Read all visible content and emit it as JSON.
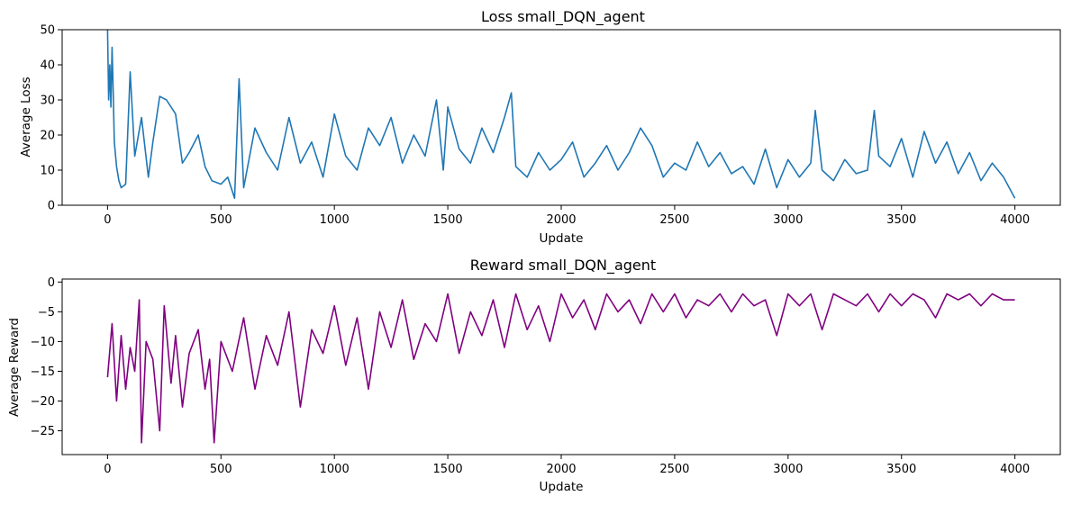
{
  "chart_data": [
    {
      "type": "line",
      "title": "Loss small_DQN_agent",
      "xlabel": "Update",
      "ylabel": "Average Loss",
      "xlim": [
        -200,
        4200
      ],
      "ylim": [
        0,
        50
      ],
      "xticks": [
        0,
        500,
        1000,
        1500,
        2000,
        2500,
        3000,
        3500,
        4000
      ],
      "yticks": [
        0,
        10,
        20,
        30,
        40,
        50
      ],
      "grid": false,
      "legend": "none",
      "series": [
        {
          "color": "#1f77b4",
          "x": [
            0,
            5,
            10,
            15,
            20,
            25,
            30,
            40,
            50,
            60,
            80,
            100,
            120,
            150,
            180,
            200,
            230,
            260,
            300,
            330,
            360,
            400,
            430,
            460,
            500,
            530,
            560,
            580,
            600,
            650,
            700,
            750,
            800,
            850,
            900,
            950,
            1000,
            1050,
            1100,
            1150,
            1200,
            1250,
            1300,
            1350,
            1400,
            1450,
            1480,
            1500,
            1550,
            1600,
            1650,
            1700,
            1750,
            1780,
            1800,
            1850,
            1900,
            1950,
            2000,
            2050,
            2100,
            2150,
            2200,
            2250,
            2300,
            2350,
            2400,
            2450,
            2500,
            2550,
            2600,
            2650,
            2700,
            2750,
            2800,
            2850,
            2900,
            2950,
            3000,
            3050,
            3100,
            3120,
            3150,
            3200,
            3250,
            3300,
            3350,
            3380,
            3400,
            3450,
            3500,
            3550,
            3600,
            3650,
            3700,
            3750,
            3800,
            3850,
            3900,
            3950,
            4000
          ],
          "y": [
            50,
            30,
            40,
            28,
            45,
            32,
            18,
            11,
            7,
            5,
            6,
            38,
            14,
            25,
            8,
            18,
            31,
            30,
            26,
            12,
            15,
            20,
            11,
            7,
            6,
            8,
            2,
            36,
            5,
            22,
            15,
            10,
            25,
            12,
            18,
            8,
            26,
            14,
            10,
            22,
            17,
            25,
            12,
            20,
            14,
            30,
            10,
            28,
            16,
            12,
            22,
            15,
            25,
            32,
            11,
            8,
            15,
            10,
            13,
            18,
            8,
            12,
            17,
            10,
            15,
            22,
            17,
            8,
            12,
            10,
            18,
            11,
            15,
            9,
            11,
            6,
            16,
            5,
            13,
            8,
            12,
            27,
            10,
            7,
            13,
            9,
            10,
            27,
            14,
            11,
            19,
            8,
            21,
            12,
            18,
            9,
            15,
            7,
            12,
            8,
            2
          ]
        }
      ]
    },
    {
      "type": "line",
      "title": "Reward small_DQN_agent",
      "xlabel": "Update",
      "ylabel": "Average Reward",
      "xlim": [
        -200,
        4200
      ],
      "ylim": [
        -29,
        0.5
      ],
      "xticks": [
        0,
        500,
        1000,
        1500,
        2000,
        2500,
        3000,
        3500,
        4000
      ],
      "yticks": [
        -25,
        -20,
        -15,
        -10,
        -5,
        0
      ],
      "grid": false,
      "legend": "none",
      "series": [
        {
          "color": "#800080",
          "x": [
            0,
            20,
            40,
            60,
            80,
            100,
            120,
            140,
            150,
            170,
            200,
            230,
            250,
            280,
            300,
            330,
            360,
            400,
            430,
            450,
            470,
            500,
            550,
            600,
            650,
            700,
            750,
            800,
            850,
            900,
            950,
            1000,
            1050,
            1100,
            1150,
            1200,
            1250,
            1300,
            1350,
            1400,
            1450,
            1500,
            1550,
            1600,
            1650,
            1700,
            1750,
            1800,
            1850,
            1900,
            1950,
            2000,
            2050,
            2100,
            2150,
            2200,
            2250,
            2300,
            2350,
            2400,
            2450,
            2500,
            2550,
            2600,
            2650,
            2700,
            2750,
            2800,
            2850,
            2900,
            2950,
            3000,
            3050,
            3100,
            3150,
            3200,
            3250,
            3300,
            3350,
            3400,
            3450,
            3500,
            3550,
            3600,
            3650,
            3700,
            3750,
            3800,
            3850,
            3900,
            3950,
            4000
          ],
          "y": [
            -16,
            -7,
            -20,
            -9,
            -18,
            -11,
            -15,
            -3,
            -27,
            -10,
            -13,
            -25,
            -4,
            -17,
            -9,
            -21,
            -12,
            -8,
            -18,
            -13,
            -27,
            -10,
            -15,
            -6,
            -18,
            -9,
            -14,
            -5,
            -21,
            -8,
            -12,
            -4,
            -14,
            -6,
            -18,
            -5,
            -11,
            -3,
            -13,
            -7,
            -10,
            -2,
            -12,
            -5,
            -9,
            -3,
            -11,
            -2,
            -8,
            -4,
            -10,
            -2,
            -6,
            -3,
            -8,
            -2,
            -5,
            -3,
            -7,
            -2,
            -5,
            -2,
            -6,
            -3,
            -4,
            -2,
            -5,
            -2,
            -4,
            -3,
            -9,
            -2,
            -4,
            -2,
            -8,
            -2,
            -3,
            -4,
            -2,
            -5,
            -2,
            -4,
            -2,
            -3,
            -6,
            -2,
            -3,
            -2,
            -4,
            -2,
            -3,
            -3
          ]
        }
      ]
    }
  ]
}
